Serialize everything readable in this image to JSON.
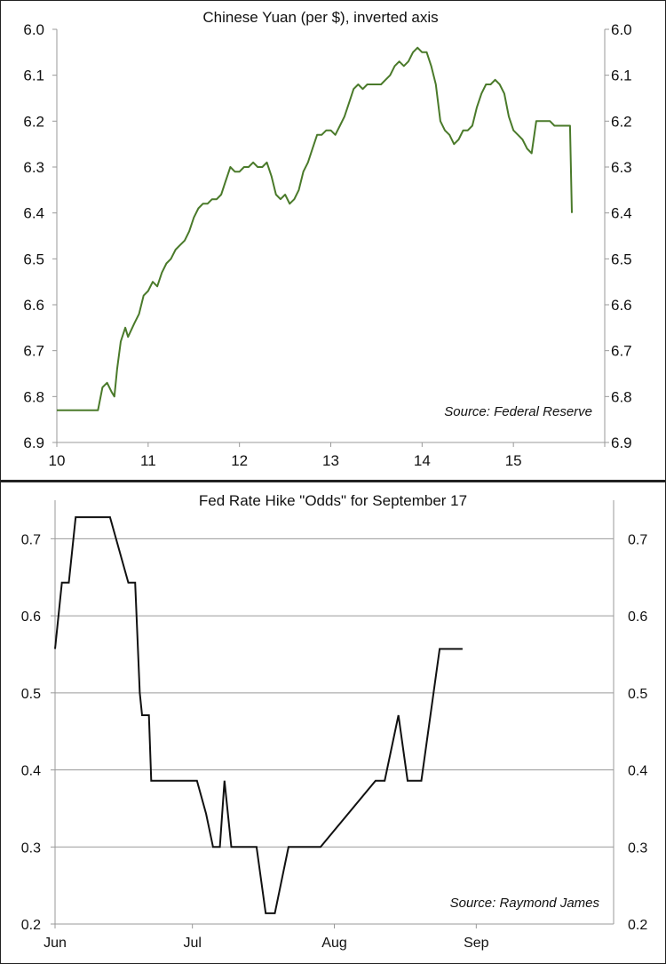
{
  "chart_data": [
    {
      "type": "line",
      "title": "Chinese Yuan (per $), inverted axis",
      "xlabel": "",
      "ylabel": "",
      "xlim": [
        10,
        16
      ],
      "ylim": [
        6.9,
        6.0
      ],
      "y_inverted": true,
      "x_ticks": [
        "10",
        "11",
        "12",
        "13",
        "14",
        "15"
      ],
      "y_ticks": [
        "6.0",
        "6.1",
        "6.2",
        "6.3",
        "6.4",
        "6.5",
        "6.6",
        "6.7",
        "6.8",
        "6.9"
      ],
      "annotation": "Source: Federal Reserve",
      "grid": false,
      "dual_y_axis": true,
      "color": "#4a7a2a",
      "series": [
        {
          "x": [
            10.0,
            10.2,
            10.45,
            10.5,
            10.55,
            10.6,
            10.63,
            10.66,
            10.7,
            10.75,
            10.78,
            10.85,
            10.9,
            10.95,
            11.0,
            11.05,
            11.1,
            11.15,
            11.2,
            11.25,
            11.3,
            11.35,
            11.4,
            11.45,
            11.5,
            11.55,
            11.6,
            11.65,
            11.7,
            11.75,
            11.8,
            11.85,
            11.9,
            11.95,
            12.0,
            12.05,
            12.1,
            12.15,
            12.2,
            12.25,
            12.3,
            12.35,
            12.4,
            12.45,
            12.5,
            12.55,
            12.6,
            12.65,
            12.7,
            12.75,
            12.8,
            12.85,
            12.9,
            12.95,
            13.0,
            13.05,
            13.1,
            13.15,
            13.2,
            13.25,
            13.3,
            13.35,
            13.4,
            13.45,
            13.5,
            13.55,
            13.6,
            13.65,
            13.7,
            13.75,
            13.8,
            13.85,
            13.9,
            13.95,
            14.0,
            14.05,
            14.1,
            14.15,
            14.2,
            14.25,
            14.3,
            14.35,
            14.4,
            14.45,
            14.5,
            14.55,
            14.6,
            14.65,
            14.7,
            14.75,
            14.8,
            14.85,
            14.9,
            14.95,
            15.0,
            15.05,
            15.1,
            15.15,
            15.2,
            15.25,
            15.3,
            15.35,
            15.4,
            15.45,
            15.5,
            15.55,
            15.6,
            15.62,
            15.64
          ],
          "y": [
            6.83,
            6.83,
            6.83,
            6.78,
            6.77,
            6.79,
            6.8,
            6.74,
            6.68,
            6.65,
            6.67,
            6.64,
            6.62,
            6.58,
            6.57,
            6.55,
            6.56,
            6.53,
            6.51,
            6.5,
            6.48,
            6.47,
            6.46,
            6.44,
            6.41,
            6.39,
            6.38,
            6.38,
            6.37,
            6.37,
            6.36,
            6.33,
            6.3,
            6.31,
            6.31,
            6.3,
            6.3,
            6.29,
            6.3,
            6.3,
            6.29,
            6.32,
            6.36,
            6.37,
            6.36,
            6.38,
            6.37,
            6.35,
            6.31,
            6.29,
            6.26,
            6.23,
            6.23,
            6.22,
            6.22,
            6.23,
            6.21,
            6.19,
            6.16,
            6.13,
            6.12,
            6.13,
            6.12,
            6.12,
            6.12,
            6.12,
            6.11,
            6.1,
            6.08,
            6.07,
            6.08,
            6.07,
            6.05,
            6.04,
            6.05,
            6.05,
            6.08,
            6.12,
            6.2,
            6.22,
            6.23,
            6.25,
            6.24,
            6.22,
            6.22,
            6.21,
            6.17,
            6.14,
            6.12,
            6.12,
            6.11,
            6.12,
            6.14,
            6.19,
            6.22,
            6.23,
            6.24,
            6.26,
            6.27,
            6.2,
            6.2,
            6.2,
            6.2,
            6.21,
            6.21,
            6.21,
            6.21,
            6.21,
            6.4
          ]
        }
      ]
    },
    {
      "type": "line",
      "title": "Fed Rate Hike \"Odds\" for September 17",
      "xlabel": "",
      "ylabel": "",
      "ylim": [
        0.2,
        0.75
      ],
      "x_ticks": [
        "Jun",
        "Jul",
        "Aug",
        "Sep"
      ],
      "y_ticks": [
        "0.2",
        "0.3",
        "0.4",
        "0.5",
        "0.6",
        "0.7"
      ],
      "annotation": "Source: Raymond James",
      "grid": true,
      "dual_y_axis": true,
      "color": "#111111",
      "x_range_days": [
        0,
        122
      ],
      "series": [
        {
          "x": [
            0,
            1.5,
            2.5,
            3,
            4.5,
            7,
            12,
            16,
            17.5,
            18.5,
            19,
            19.5,
            20.5,
            21,
            22,
            31,
            33,
            34.5,
            36,
            37,
            38.5,
            39,
            43,
            43.5,
            44,
            46,
            46.5,
            48,
            51,
            52,
            52.5,
            58,
            70,
            71,
            72,
            75,
            77,
            80,
            84,
            85,
            88,
            89
          ],
          "y": [
            0.557,
            0.643,
            0.643,
            0.643,
            0.728,
            0.728,
            0.728,
            0.643,
            0.643,
            0.5,
            0.471,
            0.471,
            0.471,
            0.386,
            0.386,
            0.386,
            0.343,
            0.3,
            0.3,
            0.386,
            0.3,
            0.3,
            0.3,
            0.3,
            0.3,
            0.214,
            0.214,
            0.214,
            0.3,
            0.3,
            0.3,
            0.3,
            0.386,
            0.386,
            0.386,
            0.471,
            0.386,
            0.386,
            0.557,
            0.557,
            0.557,
            0.557
          ]
        }
      ]
    }
  ]
}
